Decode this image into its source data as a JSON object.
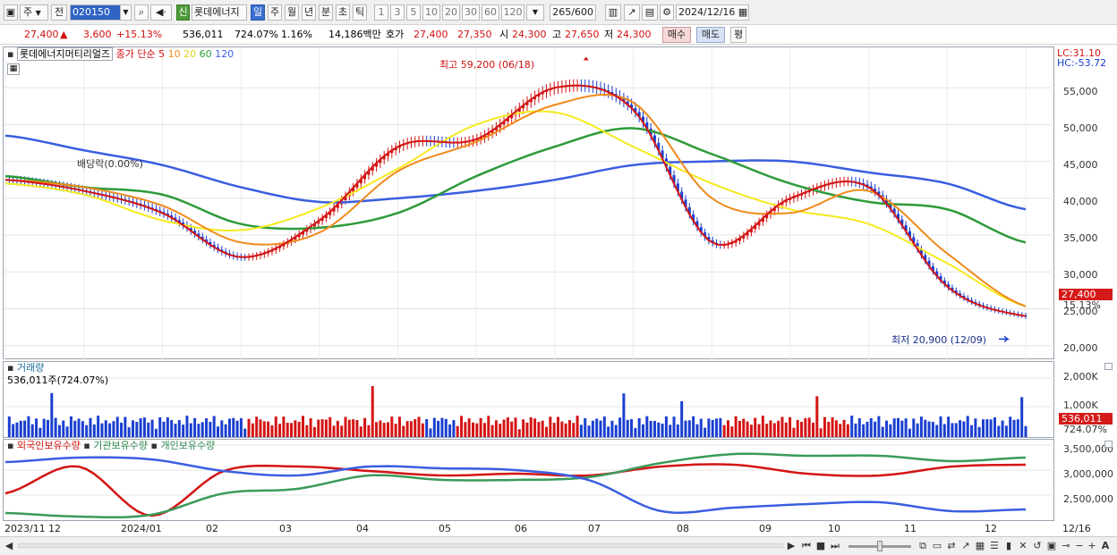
{
  "toolbar": {
    "type_label": "주",
    "prev_label": "전",
    "code": "020150",
    "shin": "신",
    "stock_name": "롯데에너지",
    "periods": [
      "일",
      "주",
      "월",
      "년",
      "분",
      "초",
      "틱"
    ],
    "minutes": [
      "1",
      "3",
      "5",
      "10",
      "20",
      "30",
      "60",
      "120"
    ],
    "bar_count": "265",
    "bar_total": "/600",
    "date": "2024/12/16"
  },
  "quote": {
    "price": "27,400",
    "arrow": "▲",
    "change": "3,600",
    "rate": "+15.13%",
    "volume": "536,011",
    "vol_rate": "724.07%",
    "turnover": "1.16%",
    "amount": "14,186백만",
    "hoga_label": "호가",
    "ask": "27,400",
    "bid": "27,350",
    "open_label": "시",
    "open": "24,300",
    "high_label": "고",
    "high": "27,650",
    "low_label": "저",
    "low": "24,300",
    "buy_btn": "매수",
    "sell_btn": "매도",
    "eval_btn": "평"
  },
  "price_panel": {
    "stock": "롯데에너지머티리얼즈",
    "ma_label": "종가 단순",
    "ma_periods": [
      "5",
      "10",
      "20",
      "60",
      "120"
    ],
    "ma_colors": [
      "#d41414",
      "#f08a1a",
      "#f5ea1e",
      "#2e9a3a",
      "#3a5ee0"
    ],
    "lc": "LC:31.10",
    "hc": "HC:-53.72",
    "high_note": "최고 59,200 (06/18)",
    "low_note": "최저 20,900 (12/09)",
    "dividend_note": "배당락(0.00%)",
    "axis": [
      "55,000",
      "50,000",
      "45,000",
      "40,000",
      "35,000",
      "30,000",
      "25,000",
      "20,000"
    ],
    "last_price": "27,400",
    "last_rate": "15.13%"
  },
  "volume_panel": {
    "title": "거래량",
    "value": "536,011주(724.07%)",
    "axis": [
      "2,000K",
      "1,000K"
    ],
    "last": "536,011",
    "last_rate": "724.07%"
  },
  "holdings_panel": {
    "legend": [
      "외국인보유수량",
      "기관보유수량",
      "개인보유수량"
    ],
    "colors": [
      "#d41414",
      "#3a9a5a",
      "#3a5ee0"
    ],
    "axis": [
      "3,500,000",
      "3,000,000",
      "2,500,000"
    ]
  },
  "x_axis": [
    "2023/11",
    "12",
    "2024/01",
    "02",
    "03",
    "04",
    "05",
    "06",
    "07",
    "08",
    "09",
    "10",
    "11",
    "12",
    "12/16"
  ],
  "chart_data": {
    "type": "line",
    "title": "롯데에너지머티리얼즈",
    "x": [
      "2023-11",
      "2023-12",
      "2024-01",
      "2024-02",
      "2024-03",
      "2024-04",
      "2024-05",
      "2024-06",
      "2024-07",
      "2024-08",
      "2024-09",
      "2024-10",
      "2024-11",
      "2024-12"
    ],
    "series": [
      {
        "name": "5",
        "values": [
          42500,
          41000,
          38000,
          32000,
          37000,
          47000,
          48000,
          55000,
          52000,
          34000,
          40000,
          41500,
          28000,
          24000
        ]
      },
      {
        "name": "60",
        "values": [
          43000,
          41500,
          40500,
          36500,
          36000,
          38000,
          43000,
          47000,
          49500,
          46000,
          42000,
          39500,
          38500,
          34000
        ]
      },
      {
        "name": "120",
        "values": [
          48500,
          46500,
          44500,
          41500,
          39500,
          40000,
          41000,
          42500,
          44500,
          45000,
          45000,
          43500,
          42000,
          38500
        ]
      }
    ],
    "high": 59200,
    "low": 20900,
    "ylim": [
      19000,
      59500
    ]
  }
}
